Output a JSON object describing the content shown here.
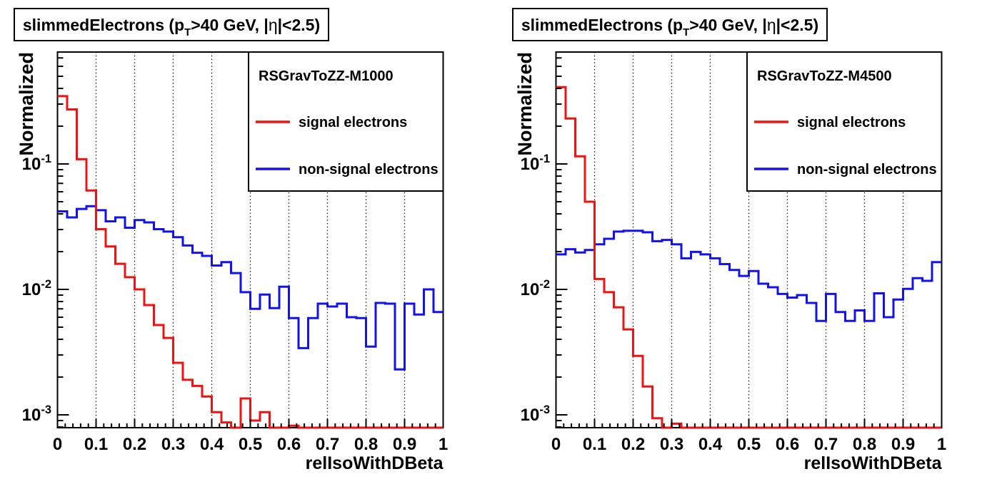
{
  "page": {
    "background": "#ffffff",
    "frame_color": "#000000",
    "signal_color": "#ee1212",
    "nonsignal_color": "#1212ee"
  },
  "panels": [
    {
      "name": "left-plot",
      "title_parts": [
        {
          "t": "slimmedElectrons (p"
        },
        {
          "t": "T",
          "style": "sub"
        },
        {
          "t": ">40 GeV, |"
        },
        {
          "t": "η",
          "style": "greek"
        },
        {
          "t": "|<2.5)"
        }
      ],
      "legend": {
        "header": "RSGravToZZ-M1000",
        "entries": [
          {
            "label": "signal electrons",
            "color": "#ee1212"
          },
          {
            "label": "non-signal electrons",
            "color": "#1212ee"
          }
        ]
      },
      "chart_index": 0
    },
    {
      "name": "right-plot",
      "title_parts": [
        {
          "t": "slimmedElectrons (p"
        },
        {
          "t": "T",
          "style": "sub"
        },
        {
          "t": ">40 GeV, |"
        },
        {
          "t": "η",
          "style": "greek"
        },
        {
          "t": "|<2.5)"
        }
      ],
      "legend": {
        "header": "RSGravToZZ-M4500",
        "entries": [
          {
            "label": "signal electrons",
            "color": "#ee1212"
          },
          {
            "label": "non-signal electrons",
            "color": "#1212ee"
          }
        ]
      },
      "chart_index": 1
    }
  ],
  "chart_data": [
    {
      "type": "step-histogram",
      "title": "slimmedElectrons (pT>40 GeV, |η|<2.5)",
      "sample": "RSGravToZZ-M1000",
      "xlabel": "relIsoWithDBeta",
      "ylabel": "Normalized",
      "x_range": [
        0,
        1
      ],
      "bin_width": 0.025,
      "n_bins": 40,
      "x_major_tick_step": 0.1,
      "x_minor_tick_step": 0.02,
      "x_tick_labels": [
        "0",
        "0.1",
        "0.2",
        "0.3",
        "0.4",
        "0.5",
        "0.6",
        "0.7",
        "0.8",
        "0.9",
        "1"
      ],
      "y_scale": "log",
      "y_range": [
        0.00079,
        0.78
      ],
      "y_labeled_decades": [
        -1,
        -2,
        -3
      ],
      "grid": "vertical-dotted",
      "legend_position": "top-right",
      "note": "values below y_range min are clipped to the axis floor",
      "series": [
        {
          "name": "signal electrons",
          "color": "#ee1212",
          "values": [
            0.347,
            0.272,
            0.109,
            0.0615,
            0.0302,
            0.022,
            0.016,
            0.0125,
            0.01,
            0.0075,
            0.0052,
            0.0041,
            0.0026,
            0.0019,
            0.0017,
            0.0014,
            0.00105,
            0.00087,
            0.0004,
            0.00135,
            0.0009,
            0.00105,
            0.0004,
            0.0004,
            0.00082,
            0.0004,
            0.0004,
            0.0004,
            0.0004,
            0.0004,
            0.0004,
            0.0004,
            0.0004,
            0.0004,
            0.0004,
            0.0004,
            0.0004,
            0.0004,
            0.0004,
            0.0004
          ]
        },
        {
          "name": "non-signal electrons",
          "color": "#1212ee",
          "values": [
            0.0419,
            0.0375,
            0.0438,
            0.0461,
            0.0428,
            0.0349,
            0.0375,
            0.031,
            0.0357,
            0.0342,
            0.0302,
            0.0289,
            0.0261,
            0.0224,
            0.0196,
            0.0185,
            0.0155,
            0.0165,
            0.0135,
            0.0095,
            0.007,
            0.0091,
            0.0071,
            0.0105,
            0.0059,
            0.0034,
            0.0059,
            0.0077,
            0.0073,
            0.0077,
            0.006,
            0.0059,
            0.0035,
            0.0078,
            0.0077,
            0.0023,
            0.0077,
            0.0063,
            0.01,
            0.0066
          ]
        }
      ]
    },
    {
      "type": "step-histogram",
      "title": "slimmedElectrons (pT>40 GeV, |η|<2.5)",
      "sample": "RSGravToZZ-M4500",
      "xlabel": "relIsoWithDBeta",
      "ylabel": "Normalized",
      "x_range": [
        0,
        1
      ],
      "bin_width": 0.025,
      "n_bins": 40,
      "x_major_tick_step": 0.1,
      "x_minor_tick_step": 0.02,
      "x_tick_labels": [
        "0",
        "0.1",
        "0.2",
        "0.3",
        "0.4",
        "0.5",
        "0.6",
        "0.7",
        "0.8",
        "0.9",
        "1"
      ],
      "y_scale": "log",
      "y_range": [
        0.00079,
        0.78
      ],
      "y_labeled_decades": [
        -1,
        -2,
        -3
      ],
      "grid": "vertical-dotted",
      "legend_position": "top-right",
      "note": "values below y_range min are clipped to the axis floor",
      "series": [
        {
          "name": "signal electrons",
          "color": "#ee1212",
          "values": [
            0.41,
            0.23,
            0.115,
            0.05,
            0.0121,
            0.0095,
            0.0072,
            0.0048,
            0.00295,
            0.00168,
            0.00094,
            0.0004,
            0.00085,
            0.0004,
            0.0004,
            0.0004,
            0.0004,
            0.0004,
            0.0004,
            0.0004,
            0.0004,
            0.0004,
            0.0004,
            0.0004,
            0.0004,
            0.0004,
            0.0004,
            0.0004,
            0.0004,
            0.0004,
            0.0004,
            0.0004,
            0.0004,
            0.0004,
            0.0004,
            0.0004,
            0.0004,
            0.0004,
            0.0004,
            0.0004
          ]
        },
        {
          "name": "non-signal electrons",
          "color": "#1212ee",
          "values": [
            0.019,
            0.0209,
            0.0197,
            0.0206,
            0.0229,
            0.0253,
            0.0289,
            0.0293,
            0.0293,
            0.0285,
            0.0242,
            0.0248,
            0.0229,
            0.0177,
            0.0199,
            0.019,
            0.0177,
            0.0159,
            0.0143,
            0.0128,
            0.014,
            0.0111,
            0.0104,
            0.0092,
            0.0086,
            0.009,
            0.0078,
            0.0056,
            0.0092,
            0.0066,
            0.0056,
            0.0068,
            0.0056,
            0.0093,
            0.006,
            0.0083,
            0.0101,
            0.0123,
            0.0117,
            0.0165
          ]
        }
      ]
    }
  ]
}
